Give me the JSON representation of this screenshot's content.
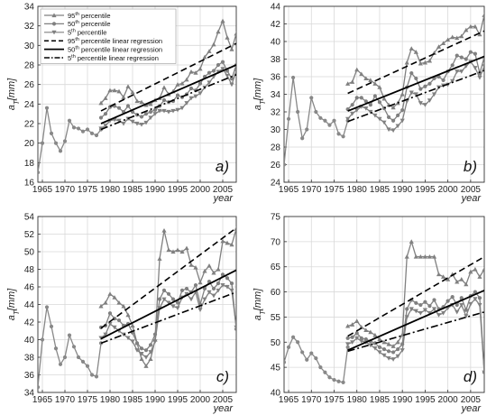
{
  "chart_data": [
    {
      "type": "line",
      "panel_label": "a)",
      "xlabel": "year",
      "ylabel": "a",
      "ylabel_sub": "T",
      "ylabel_unit": "[mm]",
      "xlim": [
        1964,
        2008
      ],
      "ylim": [
        16,
        34
      ],
      "xticks": [
        1965,
        1970,
        1975,
        1980,
        1985,
        1990,
        1995,
        2000,
        2005
      ],
      "yticks": [
        16,
        18,
        20,
        22,
        24,
        26,
        28,
        30,
        32,
        34
      ],
      "grid": true,
      "legend": {
        "placement": "top-left",
        "entries": [
          {
            "main": "95",
            "sup": "th",
            "rest": " percentile",
            "style": "line-marker",
            "marker": "triangle-up",
            "color": "#808080"
          },
          {
            "main": "50",
            "sup": "th",
            "rest": " percentile",
            "style": "line-marker",
            "marker": "circle",
            "color": "#808080"
          },
          {
            "main": "5",
            "sup": "th",
            "rest": " percentile",
            "style": "line-marker",
            "marker": "triangle-down",
            "color": "#808080"
          },
          {
            "main": "95",
            "sup": "th",
            "rest": " percentile linear regression",
            "style": "dashed",
            "color": "#000000"
          },
          {
            "main": "50",
            "sup": "th",
            "rest": " percentile linear regression",
            "style": "solid",
            "color": "#000000"
          },
          {
            "main": "5",
            "sup": "th",
            "rest": " percentile linear regression",
            "style": "dashdot",
            "color": "#000000"
          }
        ]
      },
      "base": {
        "x": [
          1964,
          1965,
          1966,
          1967,
          1968,
          1969,
          1970,
          1971,
          1972,
          1973,
          1974,
          1975,
          1976,
          1977,
          1978
        ],
        "y": [
          17.0,
          20.0,
          23.6,
          21.0,
          20.0,
          19.2,
          20.2,
          22.3,
          21.6,
          21.5,
          21.2,
          21.4,
          21.0,
          20.8,
          21.4
        ]
      },
      "x": [
        1978,
        1979,
        1980,
        1981,
        1982,
        1983,
        1984,
        1985,
        1986,
        1987,
        1988,
        1989,
        1990,
        1991,
        1992,
        1993,
        1994,
        1995,
        1996,
        1997,
        1998,
        1999,
        2000,
        2001,
        2002,
        2003,
        2004,
        2005,
        2006,
        2007,
        2008
      ],
      "series": [
        {
          "name": "95th percentile",
          "marker": "triangle-up",
          "color": "#808080",
          "values": [
            24.1,
            24.6,
            25.4,
            25.4,
            25.3,
            24.7,
            25.8,
            25.2,
            24.3,
            24.2,
            23.9,
            24.0,
            24.4,
            24.6,
            25.7,
            25.0,
            25.3,
            26.0,
            26.1,
            26.5,
            27.3,
            27.2,
            27.6,
            28.8,
            29.4,
            30.1,
            31.4,
            32.5,
            30.8,
            29.6,
            31.2
          ]
        },
        {
          "name": "50th percentile",
          "marker": "circle",
          "color": "#808080",
          "values": [
            22.6,
            23.0,
            23.7,
            23.8,
            23.6,
            23.2,
            23.8,
            23.2,
            22.9,
            22.7,
            23.0,
            23.2,
            23.4,
            23.8,
            24.4,
            24.2,
            24.3,
            24.9,
            24.7,
            25.0,
            25.6,
            25.4,
            26.1,
            26.8,
            27.2,
            27.4,
            28.0,
            28.3,
            27.4,
            26.6,
            28.0
          ]
        },
        {
          "name": "5th percentile",
          "marker": "triangle-down",
          "color": "#808080",
          "values": [
            21.5,
            21.8,
            22.3,
            22.4,
            22.3,
            22.0,
            22.5,
            22.2,
            22.0,
            21.9,
            22.1,
            22.6,
            23.0,
            23.3,
            23.3,
            23.2,
            23.3,
            23.4,
            23.6,
            24.1,
            24.6,
            24.8,
            25.1,
            25.7,
            26.2,
            26.8,
            27.3,
            27.6,
            26.9,
            26.0,
            27.4
          ]
        }
      ],
      "regression": [
        {
          "name": "95th percentile linear regression",
          "style": "dashed",
          "x": [
            1978,
            2008
          ],
          "y": [
            23.3,
            30.2
          ]
        },
        {
          "name": "50th percentile linear regression",
          "style": "solid",
          "x": [
            1978,
            2008
          ],
          "y": [
            22.0,
            28.0
          ]
        },
        {
          "name": "5th percentile linear regression",
          "style": "dashdot",
          "x": [
            1978,
            2008
          ],
          "y": [
            21.4,
            27.0
          ]
        }
      ]
    },
    {
      "type": "line",
      "panel_label": "b)",
      "xlabel": "year",
      "ylabel": "a",
      "ylabel_sub": "T",
      "ylabel_unit": "[mm]",
      "xlim": [
        1964,
        2008
      ],
      "ylim": [
        24,
        44
      ],
      "xticks": [
        1965,
        1970,
        1975,
        1980,
        1985,
        1990,
        1995,
        2000,
        2005
      ],
      "yticks": [
        24,
        26,
        28,
        30,
        32,
        34,
        36,
        38,
        40,
        42,
        44
      ],
      "grid": true,
      "base": {
        "x": [
          1964,
          1965,
          1966,
          1967,
          1968,
          1969,
          1970,
          1971,
          1972,
          1973,
          1974,
          1975,
          1976,
          1977,
          1978
        ],
        "y": [
          26.0,
          31.2,
          35.9,
          32.0,
          29.0,
          30.0,
          33.6,
          32.0,
          31.3,
          31.0,
          30.5,
          31.0,
          29.5,
          29.2,
          31.0
        ]
      },
      "x": [
        1978,
        1979,
        1980,
        1981,
        1982,
        1983,
        1984,
        1985,
        1986,
        1987,
        1988,
        1989,
        1990,
        1991,
        1992,
        1993,
        1994,
        1995,
        1996,
        1997,
        1998,
        1999,
        2000,
        2001,
        2002,
        2003,
        2004,
        2005,
        2006,
        2007,
        2008
      ],
      "series": [
        {
          "name": "95th percentile",
          "marker": "triangle-up",
          "color": "#808080",
          "values": [
            35.2,
            35.4,
            36.8,
            36.3,
            35.8,
            35.6,
            35.2,
            34.8,
            33.5,
            32.8,
            32.5,
            33.0,
            34.0,
            37.6,
            39.2,
            38.8,
            37.5,
            37.6,
            37.8,
            38.7,
            39.4,
            39.8,
            40.2,
            40.5,
            40.4,
            40.6,
            41.3,
            41.7,
            41.7,
            40.8,
            43.0
          ]
        },
        {
          "name": "50th percentile",
          "marker": "circle",
          "color": "#808080",
          "values": [
            32.3,
            32.8,
            33.6,
            33.6,
            33.2,
            32.8,
            33.8,
            33.1,
            32.4,
            31.4,
            31.0,
            31.6,
            32.2,
            34.8,
            36.4,
            35.8,
            34.6,
            34.9,
            35.2,
            35.8,
            36.0,
            35.6,
            36.6,
            37.3,
            38.4,
            38.2,
            38.0,
            38.8,
            38.6,
            36.4,
            38.2
          ]
        },
        {
          "name": "5th percentile",
          "marker": "triangle-down",
          "color": "#808080",
          "values": [
            31.2,
            31.8,
            32.2,
            32.6,
            32.4,
            32.0,
            31.6,
            31.2,
            30.8,
            30.0,
            29.9,
            30.4,
            31.0,
            33.2,
            34.2,
            34.0,
            33.0,
            32.8,
            33.3,
            34.0,
            34.8,
            35.0,
            35.1,
            35.5,
            36.6,
            36.6,
            37.2,
            37.7,
            37.0,
            35.9,
            37.2
          ]
        }
      ],
      "regression": [
        {
          "name": "95th percentile linear regression",
          "style": "dashed",
          "x": [
            1978,
            2008
          ],
          "y": [
            34.1,
            41.2
          ]
        },
        {
          "name": "50th percentile linear regression",
          "style": "solid",
          "x": [
            1978,
            2008
          ],
          "y": [
            32.1,
            38.3
          ]
        },
        {
          "name": "5th percentile linear regression",
          "style": "dashdot",
          "x": [
            1978,
            2008
          ],
          "y": [
            30.9,
            36.7
          ]
        }
      ]
    },
    {
      "type": "line",
      "panel_label": "c)",
      "xlabel": "year",
      "ylabel": "a",
      "ylabel_sub": "T",
      "ylabel_unit": "[mm]",
      "xlim": [
        1964,
        2008
      ],
      "ylim": [
        34,
        54
      ],
      "xticks": [
        1965,
        1970,
        1975,
        1980,
        1985,
        1990,
        1995,
        2000,
        2005
      ],
      "yticks": [
        34,
        36,
        38,
        40,
        42,
        44,
        46,
        48,
        50,
        52,
        54
      ],
      "grid": true,
      "base": {
        "x": [
          1964,
          1965,
          1966,
          1967,
          1968,
          1969,
          1970,
          1971,
          1972,
          1973,
          1974,
          1975,
          1976,
          1977,
          1978
        ],
        "y": [
          34.6,
          40.0,
          43.7,
          41.5,
          39.0,
          37.2,
          38.0,
          40.5,
          39.2,
          38.0,
          37.5,
          37.0,
          36.0,
          35.8,
          39.6
        ]
      },
      "x": [
        1978,
        1979,
        1980,
        1981,
        1982,
        1983,
        1984,
        1985,
        1986,
        1987,
        1988,
        1989,
        1990,
        1991,
        1992,
        1993,
        1994,
        1995,
        1996,
        1997,
        1998,
        1999,
        2000,
        2001,
        2002,
        2003,
        2004,
        2005,
        2006,
        2007,
        2008
      ],
      "series": [
        {
          "name": "95th percentile",
          "marker": "triangle-up",
          "color": "#808080",
          "values": [
            43.8,
            44.2,
            45.2,
            44.8,
            44.2,
            43.8,
            42.8,
            41.6,
            39.6,
            37.8,
            37.0,
            37.8,
            40.0,
            49.2,
            52.4,
            50.2,
            50.0,
            50.2,
            50.0,
            50.4,
            48.5,
            48.2,
            46.5,
            47.8,
            48.4,
            47.6,
            48.0,
            51.2,
            51.0,
            50.8,
            52.6
          ]
        },
        {
          "name": "50th percentile",
          "marker": "circle",
          "color": "#808080",
          "values": [
            41.4,
            41.6,
            43.0,
            42.4,
            42.2,
            41.6,
            41.8,
            40.8,
            39.6,
            39.0,
            38.8,
            39.4,
            40.6,
            44.6,
            45.6,
            45.2,
            44.6,
            44.2,
            45.6,
            45.8,
            45.4,
            46.2,
            44.0,
            45.8,
            46.6,
            45.8,
            46.4,
            47.4,
            47.0,
            46.4,
            41.2
          ]
        },
        {
          "name": "5th percentile",
          "marker": "triangle-down",
          "color": "#808080",
          "values": [
            40.2,
            40.6,
            41.8,
            41.4,
            41.0,
            40.6,
            40.2,
            39.8,
            38.8,
            38.4,
            38.0,
            38.6,
            39.8,
            43.6,
            44.6,
            44.2,
            43.8,
            43.6,
            44.8,
            45.2,
            44.6,
            45.4,
            43.4,
            44.6,
            45.4,
            45.0,
            45.6,
            46.2,
            46.0,
            45.6,
            41.4
          ]
        }
      ],
      "regression": [
        {
          "name": "95th percentile linear regression",
          "style": "dashed",
          "x": [
            1978,
            2008
          ],
          "y": [
            41.3,
            52.7
          ]
        },
        {
          "name": "50th percentile linear regression",
          "style": "solid",
          "x": [
            1978,
            2008
          ],
          "y": [
            40.1,
            47.9
          ]
        },
        {
          "name": "5th percentile linear regression",
          "style": "dashdot",
          "x": [
            1978,
            2008
          ],
          "y": [
            39.6,
            45.4
          ]
        }
      ]
    },
    {
      "type": "line",
      "panel_label": "d)",
      "xlabel": "year",
      "ylabel": "a",
      "ylabel_sub": "T",
      "ylabel_unit": "[mm]",
      "xlim": [
        1964,
        2008
      ],
      "ylim": [
        40,
        75
      ],
      "xticks": [
        1965,
        1970,
        1975,
        1980,
        1985,
        1990,
        1995,
        2000,
        2005
      ],
      "yticks": [
        40,
        45,
        50,
        55,
        60,
        65,
        70,
        75
      ],
      "grid": true,
      "base": {
        "x": [
          1964,
          1965,
          1966,
          1967,
          1968,
          1969,
          1970,
          1971,
          1972,
          1973,
          1974,
          1975,
          1976,
          1977,
          1978
        ],
        "y": [
          46.0,
          49.0,
          51.0,
          50.0,
          48.0,
          46.5,
          47.8,
          46.8,
          45.0,
          44.0,
          43.0,
          42.5,
          42.2,
          42.0,
          49.0
        ]
      },
      "x": [
        1978,
        1979,
        1980,
        1981,
        1982,
        1983,
        1984,
        1985,
        1986,
        1987,
        1988,
        1989,
        1990,
        1991,
        1992,
        1993,
        1994,
        1995,
        1996,
        1997,
        1998,
        1999,
        2000,
        2001,
        2002,
        2003,
        2004,
        2005,
        2006,
        2007,
        2008
      ],
      "series": [
        {
          "name": "95th percentile",
          "marker": "triangle-up",
          "color": "#808080",
          "values": [
            53.2,
            53.5,
            54.2,
            53.0,
            52.4,
            52.0,
            51.4,
            50.6,
            50.0,
            49.6,
            49.2,
            50.0,
            51.5,
            67.0,
            70.0,
            67.0,
            67.0,
            67.0,
            67.0,
            67.0,
            63.5,
            63.0,
            62.5,
            63.5,
            62.0,
            62.5,
            61.5,
            64.0,
            64.5,
            63.0,
            64.5
          ]
        },
        {
          "name": "50th percentile",
          "marker": "circle",
          "color": "#808080",
          "values": [
            50.8,
            51.0,
            51.8,
            50.8,
            50.6,
            50.2,
            49.8,
            49.0,
            48.6,
            48.2,
            48.0,
            48.6,
            49.6,
            56.6,
            58.4,
            57.8,
            57.4,
            58.0,
            57.2,
            58.4,
            56.6,
            57.0,
            58.2,
            59.0,
            57.4,
            58.8,
            56.4,
            59.2,
            60.0,
            58.8,
            44.0
          ]
        },
        {
          "name": "5th percentile",
          "marker": "triangle-down",
          "color": "#808080",
          "values": [
            49.6,
            50.0,
            50.8,
            50.2,
            50.0,
            49.4,
            48.8,
            48.0,
            47.4,
            46.8,
            46.6,
            47.2,
            48.4,
            55.0,
            56.6,
            56.2,
            55.8,
            56.4,
            55.8,
            56.6,
            55.4,
            55.8,
            56.8,
            57.4,
            56.0,
            57.4,
            55.2,
            57.6,
            58.6,
            57.4,
            44.0
          ]
        }
      ],
      "regression": [
        {
          "name": "95th percentile linear regression",
          "style": "dashed",
          "x": [
            1978,
            2008
          ],
          "y": [
            51.2,
            67.0
          ]
        },
        {
          "name": "50th percentile linear regression",
          "style": "solid",
          "x": [
            1978,
            2008
          ],
          "y": [
            48.4,
            60.3
          ]
        },
        {
          "name": "5th percentile linear regression",
          "style": "dashdot",
          "x": [
            1978,
            2008
          ],
          "y": [
            48.2,
            56.0
          ]
        }
      ]
    }
  ]
}
